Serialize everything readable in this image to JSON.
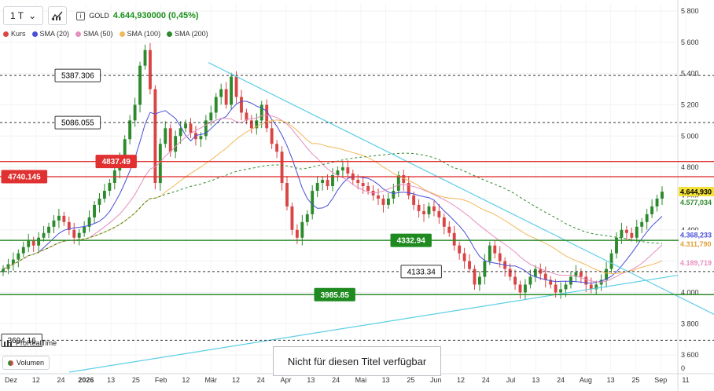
{
  "toolbar": {
    "timeframe": "1 T",
    "instrument": "GOLD",
    "price": "4.644,930000 (0,45%)"
  },
  "legend": [
    {
      "label": "Kurs",
      "color": "#d94545"
    },
    {
      "label": "SMA (20)",
      "color": "#4a4fd6"
    },
    {
      "label": "SMA (50)",
      "color": "#e58fc0"
    },
    {
      "label": "SMA (100)",
      "color": "#f2b95a"
    },
    {
      "label": "SMA (200)",
      "color": "#2c8a2c"
    }
  ],
  "footer": {
    "prorealtime": "ProRealTime",
    "volumen": "Volumen",
    "not_available": "Nicht für diesen Titel verfügbar"
  },
  "chart_data": {
    "type": "candlestick",
    "x_ticks": [
      "Dez",
      "12",
      "24",
      "2026",
      "13",
      "25",
      "Feb",
      "12",
      "Mär",
      "12",
      "24",
      "Apr",
      "13",
      "24",
      "Mai",
      "13",
      "25",
      "Jun",
      "12",
      "24",
      "Jul",
      "13",
      "24",
      "Aug",
      "13",
      "25",
      "Sep",
      "11"
    ],
    "y_ticks": [
      "5.800",
      "5.600",
      "5.400",
      "5.200",
      "5.000",
      "4.800",
      "4.600",
      "4.400",
      "4.200",
      "4.000",
      "3.800",
      "3.600"
    ],
    "ylim": [
      3480,
      5850
    ],
    "volume_axis": "0",
    "levels": [
      {
        "label": "5387.306",
        "value": 5387.306,
        "style": "dashed-black"
      },
      {
        "label": "5086.055",
        "value": 5086.055,
        "style": "dashed-black"
      },
      {
        "label": "4837.49",
        "value": 4837.49,
        "style": "solid-red"
      },
      {
        "label": "4740.145",
        "value": 4740.145,
        "style": "solid-red"
      },
      {
        "label": "4332.94",
        "value": 4332.94,
        "style": "solid-green"
      },
      {
        "label": "4133.34",
        "value": 4133.34,
        "style": "dashed-black"
      },
      {
        "label": "3985.85",
        "value": 3985.85,
        "style": "solid-green"
      },
      {
        "label": "3694.16",
        "value": 3694.16,
        "style": "dashed-black"
      }
    ],
    "right_labels": [
      {
        "text": "4.644,930",
        "value": 4644.93,
        "bg": "#f4e23a",
        "color": "#000"
      },
      {
        "text": "4.577,034",
        "value": 4577.034,
        "bg": "#ffffff",
        "color": "#2c8a2c"
      },
      {
        "text": "4.368,233",
        "value": 4368.233,
        "bg": "#ffffff",
        "color": "#4a4fd6"
      },
      {
        "text": "4.311,790",
        "value": 4311.79,
        "bg": "#ffffff",
        "color": "#e0a23a"
      },
      {
        "text": "4.189,719",
        "value": 4189.719,
        "bg": "#ffffff",
        "color": "#e58fc0"
      }
    ],
    "closes": [
      4150,
      4180,
      4210,
      4250,
      4290,
      4330,
      4300,
      4350,
      4380,
      4420,
      4460,
      4490,
      4450,
      4400,
      4350,
      4380,
      4420,
      4480,
      4560,
      4600,
      4650,
      4700,
      4780,
      4850,
      4980,
      5100,
      5200,
      5450,
      5550,
      5300,
      4700,
      4950,
      5050,
      4900,
      5000,
      5050,
      5080,
      5020,
      4980,
      5000,
      5100,
      5150,
      5250,
      5300,
      5200,
      5380,
      5250,
      5150,
      5100,
      5050,
      5100,
      5200,
      5050,
      4950,
      4900,
      4700,
      4550,
      4400,
      4350,
      4450,
      4500,
      4650,
      4700,
      4720,
      4680,
      4750,
      4780,
      4800,
      4760,
      4720,
      4700,
      4680,
      4650,
      4620,
      4600,
      4560,
      4600,
      4650,
      4750,
      4700,
      4620,
      4560,
      4520,
      4500,
      4550,
      4520,
      4480,
      4420,
      4380,
      4300,
      4250,
      4200,
      4150,
      4050,
      4100,
      4200,
      4300,
      4250,
      4200,
      4150,
      4100,
      4050,
      4000,
      4050,
      4100,
      4150,
      4120,
      4080,
      4050,
      4000,
      4020,
      4050,
      4100,
      4130,
      4100,
      4050,
      4020,
      4050,
      4080,
      4150,
      4250,
      4350,
      4400,
      4380,
      4350,
      4420,
      4450,
      4500,
      4550,
      4600,
      4644
    ]
  }
}
